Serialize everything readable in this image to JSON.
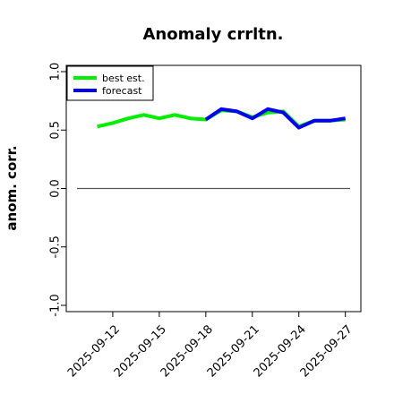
{
  "chart_data": {
    "type": "line",
    "title": "Anomaly crrltn.",
    "xlabel": "",
    "ylabel": "anom. corr.",
    "ylim": [
      -1.0,
      1.0
    ],
    "xlim": [
      "2025-09-09",
      "2025-09-28"
    ],
    "yticks": [
      -1.0,
      -0.5,
      0.0,
      0.5,
      1.0
    ],
    "ytick_labels": [
      "-1.0",
      "-0.5",
      "0.0",
      "0.5",
      "1.0"
    ],
    "xticks": [
      "2025-09-12",
      "2025-09-15",
      "2025-09-18",
      "2025-09-21",
      "2025-09-24",
      "2025-09-27"
    ],
    "xtick_labels": [
      "2025-09-12",
      "2025-09-15",
      "2025-09-18",
      "2025-09-21",
      "2025-09-24",
      "2025-09-27"
    ],
    "highlight_tick": "2025-09-18",
    "highlight_color": "#228b22",
    "reference_line": 0.0,
    "legend": {
      "position": "top-left"
    },
    "grid": false,
    "series": [
      {
        "name": "best est.",
        "color": "#00ee00",
        "x": [
          "2025-09-11",
          "2025-09-12",
          "2025-09-13",
          "2025-09-14",
          "2025-09-15",
          "2025-09-16",
          "2025-09-17",
          "2025-09-18",
          "2025-09-19",
          "2025-09-20",
          "2025-09-21",
          "2025-09-22",
          "2025-09-23",
          "2025-09-24",
          "2025-09-25",
          "2025-09-26",
          "2025-09-27"
        ],
        "y": [
          0.53,
          0.56,
          0.6,
          0.63,
          0.6,
          0.63,
          0.6,
          0.59,
          0.67,
          0.66,
          0.61,
          0.65,
          0.66,
          0.53,
          0.58,
          0.58,
          0.59
        ]
      },
      {
        "name": "forecast",
        "color": "#0000ee",
        "x": [
          "2025-09-18",
          "2025-09-19",
          "2025-09-20",
          "2025-09-21",
          "2025-09-22",
          "2025-09-23",
          "2025-09-24",
          "2025-09-25",
          "2025-09-26",
          "2025-09-27"
        ],
        "y": [
          0.59,
          0.68,
          0.66,
          0.6,
          0.68,
          0.65,
          0.52,
          0.58,
          0.58,
          0.6
        ]
      }
    ]
  }
}
